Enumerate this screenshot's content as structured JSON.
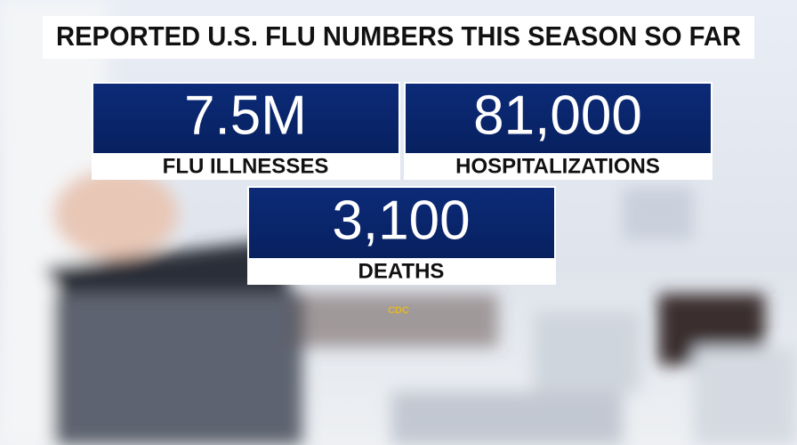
{
  "header": {
    "title": "REPORTED U.S. FLU NUMBERS THIS SEASON SO FAR"
  },
  "stats": [
    {
      "value": "7.5M",
      "label": "FLU ILLNESSES"
    },
    {
      "value": "81,000",
      "label": "HOSPITALIZATIONS"
    },
    {
      "value": "3,100",
      "label": "DEATHS"
    }
  ],
  "source": "CDC"
}
